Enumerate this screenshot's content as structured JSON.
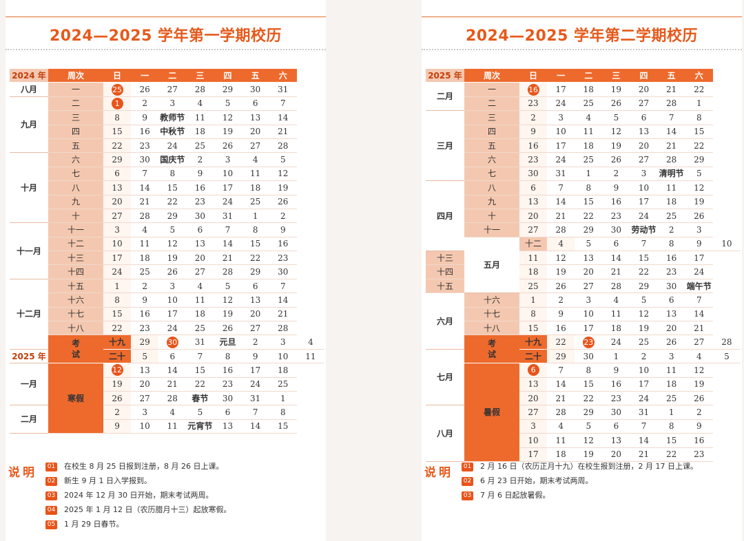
{
  "colors": {
    "accent": "#ee6a2c",
    "light": "#f4c8b0",
    "text": "#333333"
  },
  "left": {
    "title": "2024—2025 学年第一学期校历",
    "header": [
      "2024 年",
      "周次",
      "日",
      "一",
      "二",
      "三",
      "四",
      "五",
      "六"
    ],
    "rows": [
      {
        "m": "八月",
        "mr": 1,
        "w": "一",
        "d": [
          "25",
          "26",
          "27",
          "28",
          "29",
          "30",
          "31"
        ],
        "c": [
          0
        ]
      },
      {
        "m": "九月",
        "mr": 4,
        "w": "二",
        "d": [
          "1",
          "2",
          "3",
          "4",
          "5",
          "6",
          "7"
        ],
        "c": [
          0
        ]
      },
      {
        "w": "三",
        "d": [
          "8",
          "9",
          "教师节",
          "11",
          "12",
          "13",
          "14"
        ],
        "h": [
          2
        ]
      },
      {
        "w": "四",
        "d": [
          "15",
          "16",
          "中秋节",
          "18",
          "19",
          "20",
          "21"
        ],
        "h": [
          2
        ]
      },
      {
        "w": "五",
        "d": [
          "22",
          "23",
          "24",
          "25",
          "26",
          "27",
          "28"
        ]
      },
      {
        "m": "十月",
        "mr": 5,
        "w": "六",
        "d": [
          "29",
          "30",
          "国庆节",
          "2",
          "3",
          "4",
          "5"
        ],
        "h": [
          2
        ]
      },
      {
        "w": "七",
        "d": [
          "6",
          "7",
          "8",
          "9",
          "10",
          "11",
          "12"
        ]
      },
      {
        "w": "八",
        "d": [
          "13",
          "14",
          "15",
          "16",
          "17",
          "18",
          "19"
        ]
      },
      {
        "w": "九",
        "d": [
          "20",
          "21",
          "22",
          "23",
          "24",
          "25",
          "26"
        ]
      },
      {
        "w": "十",
        "d": [
          "27",
          "28",
          "29",
          "30",
          "31",
          "1",
          "2"
        ]
      },
      {
        "m": "十一月",
        "mr": 4,
        "w": "十一",
        "d": [
          "3",
          "4",
          "5",
          "6",
          "7",
          "8",
          "9"
        ]
      },
      {
        "w": "十二",
        "d": [
          "10",
          "11",
          "12",
          "13",
          "14",
          "15",
          "16"
        ]
      },
      {
        "w": "十三",
        "d": [
          "17",
          "18",
          "19",
          "20",
          "21",
          "22",
          "23"
        ]
      },
      {
        "w": "十四",
        "d": [
          "24",
          "25",
          "26",
          "27",
          "28",
          "29",
          "30"
        ]
      },
      {
        "m": "十二月",
        "mr": 5,
        "w": "十五",
        "d": [
          "1",
          "2",
          "3",
          "4",
          "5",
          "6",
          "7"
        ]
      },
      {
        "w": "十六",
        "d": [
          "8",
          "9",
          "10",
          "11",
          "12",
          "13",
          "14"
        ]
      },
      {
        "w": "十七",
        "d": [
          "15",
          "16",
          "17",
          "18",
          "19",
          "20",
          "21"
        ]
      },
      {
        "w": "十八",
        "d": [
          "22",
          "23",
          "24",
          "25",
          "26",
          "27",
          "28"
        ]
      },
      {
        "ex": "考试",
        "exr": 2,
        "w": "十九",
        "wx": 1,
        "d": [
          "29",
          "30",
          "31",
          "元旦",
          "2",
          "3",
          "4"
        ],
        "c": [
          1
        ],
        "h": [
          3
        ]
      },
      {
        "m": "2025 年",
        "mr": 1,
        "yl": 1,
        "w": "二十",
        "wx": 1,
        "d": [
          "5",
          "6",
          "7",
          "8",
          "9",
          "10",
          "11"
        ]
      },
      {
        "m": "一月",
        "mr": 3,
        "vac": "寒假",
        "vacr": 5,
        "d": [
          "12",
          "13",
          "14",
          "15",
          "16",
          "17",
          "18"
        ],
        "c": [
          0
        ]
      },
      {
        "d": [
          "19",
          "20",
          "21",
          "22",
          "23",
          "24",
          "25"
        ]
      },
      {
        "d": [
          "26",
          "27",
          "28",
          "春节",
          "30",
          "31",
          "1"
        ],
        "h": [
          3
        ]
      },
      {
        "m": "二月",
        "mr": 2,
        "d": [
          "2",
          "3",
          "4",
          "5",
          "6",
          "7",
          "8"
        ]
      },
      {
        "d": [
          "9",
          "10",
          "11",
          "元宵节",
          "13",
          "14",
          "15"
        ],
        "h": [
          3
        ]
      }
    ],
    "notes_label": "说明",
    "notes": [
      {
        "n": "01",
        "t": "在校生 8 月 25 日报到注册，8 月 26 日上课。"
      },
      {
        "n": "02",
        "t": "新生 9 月 1 日入学报到。"
      },
      {
        "n": "03",
        "t": "2024 年 12 月 30 日开始，期末考试两周。"
      },
      {
        "n": "04",
        "t": "2025 年 1 月 12 日（农历腊月十三）起放寒假。"
      },
      {
        "n": "05",
        "t": "1 月 29 日春节。"
      }
    ]
  },
  "right": {
    "title": "2024—2025 学年第二学期校历",
    "header": [
      "2025 年",
      "周次",
      "日",
      "一",
      "二",
      "三",
      "四",
      "五",
      "六"
    ],
    "rows": [
      {
        "m": "二月",
        "mr": 2,
        "w": "一",
        "d": [
          "16",
          "17",
          "18",
          "19",
          "20",
          "21",
          "22"
        ],
        "c": [
          0
        ]
      },
      {
        "w": "二",
        "d": [
          "23",
          "24",
          "25",
          "26",
          "27",
          "28",
          "1"
        ]
      },
      {
        "m": "三月",
        "mr": 5,
        "w": "三",
        "d": [
          "2",
          "3",
          "4",
          "5",
          "6",
          "7",
          "8"
        ]
      },
      {
        "w": "四",
        "d": [
          "9",
          "10",
          "11",
          "12",
          "13",
          "14",
          "15"
        ]
      },
      {
        "w": "五",
        "d": [
          "16",
          "17",
          "18",
          "19",
          "20",
          "21",
          "22"
        ]
      },
      {
        "w": "六",
        "d": [
          "23",
          "24",
          "25",
          "26",
          "27",
          "28",
          "29"
        ]
      },
      {
        "w": "七",
        "d": [
          "30",
          "31",
          "1",
          "2",
          "3",
          "清明节",
          "5"
        ],
        "h": [
          5
        ]
      },
      {
        "m": "四月",
        "mr": 5,
        "w": "八",
        "d": [
          "6",
          "7",
          "8",
          "9",
          "10",
          "11",
          "12"
        ]
      },
      {
        "w": "九",
        "d": [
          "13",
          "14",
          "15",
          "16",
          "17",
          "18",
          "19"
        ]
      },
      {
        "w": "十",
        "d": [
          "20",
          "21",
          "22",
          "23",
          "24",
          "25",
          "26"
        ]
      },
      {
        "w": "十一",
        "d": [
          "27",
          "28",
          "29",
          "30",
          "劳动节",
          "2",
          "3"
        ],
        "h": [
          4
        ]
      },
      {
        "m": "五月",
        "mr": 4,
        "w": "十二",
        "d": [
          "4",
          "5",
          "6",
          "7",
          "8",
          "9",
          "10"
        ]
      },
      {
        "w": "十三",
        "d": [
          "11",
          "12",
          "13",
          "14",
          "15",
          "16",
          "17"
        ]
      },
      {
        "w": "十四",
        "d": [
          "18",
          "19",
          "20",
          "21",
          "22",
          "23",
          "24"
        ]
      },
      {
        "w": "十五",
        "d": [
          "25",
          "26",
          "27",
          "28",
          "29",
          "30",
          "端午节"
        ],
        "h": [
          6
        ]
      },
      {
        "m": "六月",
        "mr": 4,
        "w": "十六",
        "d": [
          "1",
          "2",
          "3",
          "4",
          "5",
          "6",
          "7"
        ]
      },
      {
        "w": "十七",
        "d": [
          "8",
          "9",
          "10",
          "11",
          "12",
          "13",
          "14"
        ]
      },
      {
        "w": "十八",
        "d": [
          "15",
          "16",
          "17",
          "18",
          "19",
          "20",
          "21"
        ]
      },
      {
        "ex": "考试",
        "exr": 2,
        "w": "十九",
        "wx": 1,
        "d": [
          "22",
          "23",
          "24",
          "25",
          "26",
          "27",
          "28"
        ],
        "c": [
          1
        ]
      },
      {
        "m": "七月",
        "mr": 4,
        "w": "二十",
        "wx": 1,
        "d": [
          "29",
          "30",
          "1",
          "2",
          "3",
          "4",
          "5"
        ]
      },
      {
        "vac": "暑假",
        "vacr": 7,
        "d": [
          "6",
          "7",
          "8",
          "9",
          "10",
          "11",
          "12"
        ],
        "c": [
          0
        ]
      },
      {
        "d": [
          "13",
          "14",
          "15",
          "16",
          "17",
          "18",
          "19"
        ]
      },
      {
        "d": [
          "20",
          "21",
          "22",
          "23",
          "24",
          "25",
          "26"
        ]
      },
      {
        "m": "八月",
        "mr": 4,
        "d": [
          "27",
          "28",
          "29",
          "30",
          "31",
          "1",
          "2"
        ]
      },
      {
        "d": [
          "3",
          "4",
          "5",
          "6",
          "7",
          "8",
          "9"
        ]
      },
      {
        "d": [
          "10",
          "11",
          "12",
          "13",
          "14",
          "15",
          "16"
        ]
      },
      {
        "d": [
          "17",
          "18",
          "19",
          "20",
          "21",
          "22",
          "23"
        ]
      }
    ],
    "notes_label": "说明",
    "notes": [
      {
        "n": "01",
        "t": "2 月 16 日（农历正月十九）在校生报到注册，2 月 17 日上课。"
      },
      {
        "n": "02",
        "t": "6 月 23 日开始，期末考试两周。"
      },
      {
        "n": "03",
        "t": "7 月 6 日起放暑假。"
      }
    ]
  }
}
